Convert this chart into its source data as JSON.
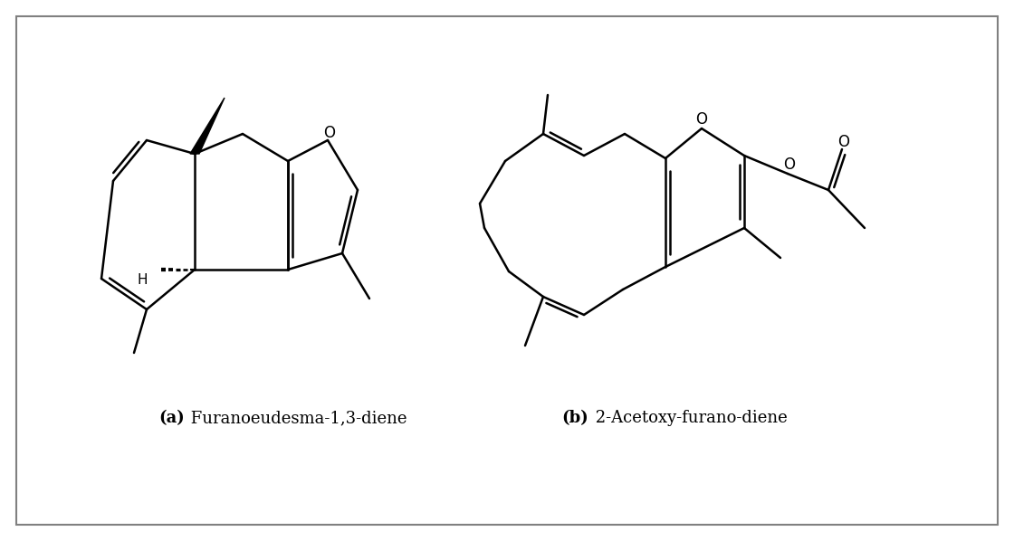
{
  "background_color": "#ffffff",
  "border_color": "#808080",
  "label_a_bold": "(a)",
  "label_a_regular": " Furanoeudesma-1,3-diene",
  "label_b_bold": "(b)",
  "label_b_regular": " 2-Acetoxy-furano-diene",
  "line_width": 1.8,
  "line_color": "#000000",
  "font_size_label": 13
}
